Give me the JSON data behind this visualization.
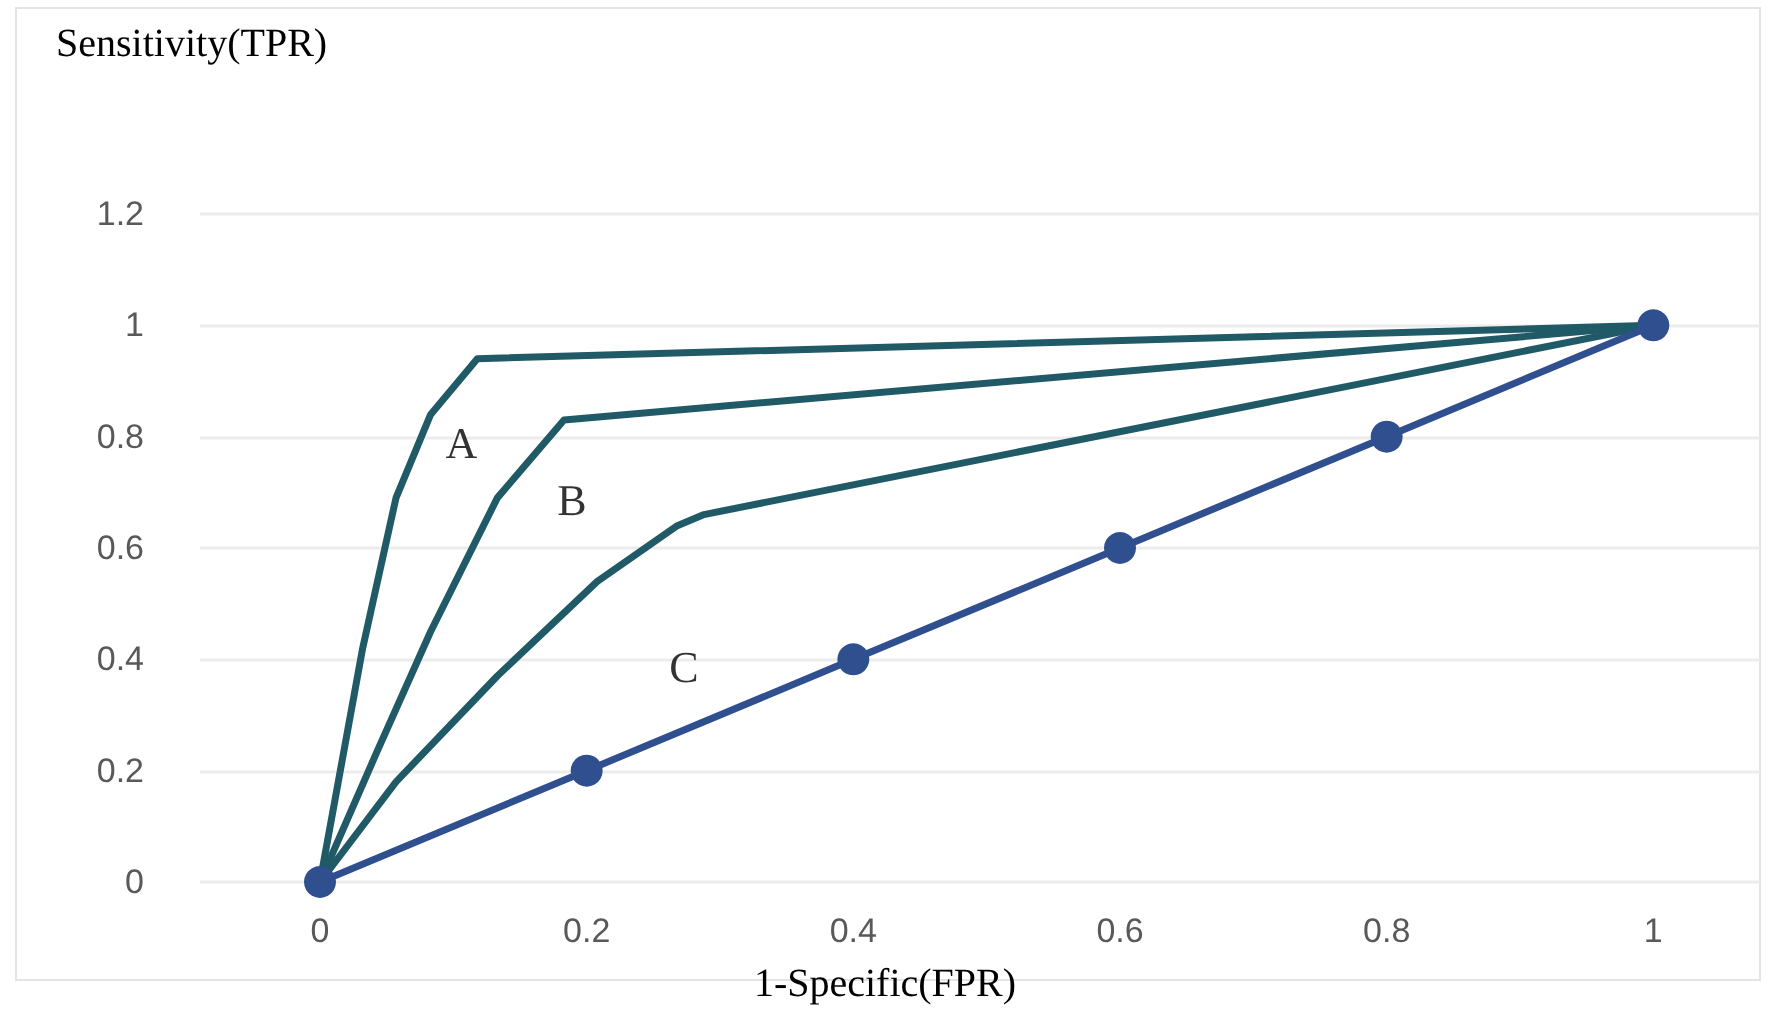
{
  "chart_data": {
    "type": "line",
    "xlabel": "1-Specific(FPR)",
    "ylabel": "Sensitivity(TPR)",
    "xlim": [
      -0.09,
      1.08
    ],
    "xticks": [
      0,
      0.2,
      0.4,
      0.6,
      0.8,
      1
    ],
    "ylim": [
      0,
      1.2
    ],
    "yticks": [
      0,
      0.2,
      0.4,
      0.6,
      0.8,
      1,
      1.2
    ],
    "grid": "y",
    "line_style": "solid",
    "series": [
      {
        "color": "#1f5a66",
        "marker": "none",
        "x": [
          0,
          0.032,
          0.057,
          0.083,
          0.118,
          1
        ],
        "values": [
          0,
          0.42,
          0.69,
          0.84,
          0.94,
          1
        ]
      },
      {
        "color": "#1f5a66",
        "marker": "none",
        "x": [
          0,
          0.042,
          0.083,
          0.133,
          0.183,
          1
        ],
        "values": [
          0,
          0.23,
          0.45,
          0.69,
          0.83,
          1
        ]
      },
      {
        "color": "#1f5a66",
        "marker": "none",
        "x": [
          0,
          0.057,
          0.133,
          0.208,
          0.268,
          0.288,
          1
        ],
        "values": [
          0,
          0.18,
          0.37,
          0.54,
          0.64,
          0.66,
          1
        ]
      },
      {
        "color": "#2f4f8f",
        "marker": "circle",
        "x": [
          0,
          0.2,
          0.4,
          0.6,
          0.8,
          1
        ],
        "values": [
          0,
          0.2,
          0.4,
          0.6,
          0.8,
          1
        ]
      }
    ],
    "annotations": [
      "A",
      "B",
      "C"
    ]
  }
}
